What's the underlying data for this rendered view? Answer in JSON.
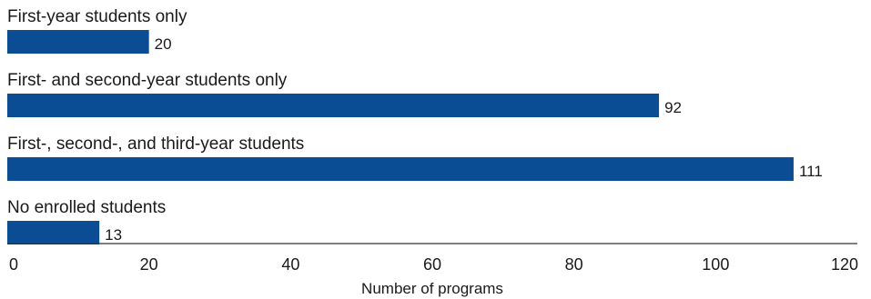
{
  "chart_data": {
    "type": "bar",
    "orientation": "horizontal",
    "categories": [
      "First-year students only",
      "First- and second-year students only",
      "First-, second-, and third-year students",
      "No enrolled students"
    ],
    "values": [
      20,
      92,
      111,
      13
    ],
    "xlabel": "Number of programs",
    "ylabel": "",
    "xlim": [
      0,
      120
    ],
    "xticks": [
      0,
      20,
      40,
      60,
      80,
      100,
      120
    ],
    "grid": false,
    "bar_color": "#0b4d94"
  }
}
